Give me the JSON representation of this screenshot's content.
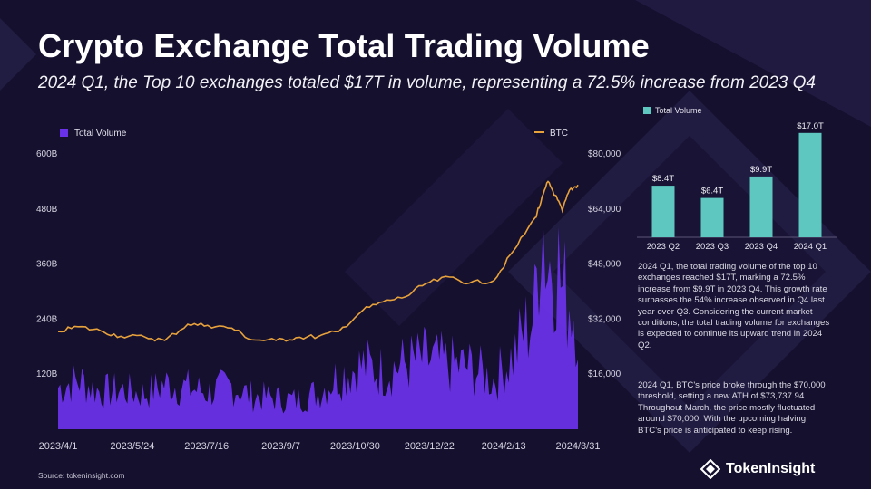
{
  "header": {
    "title": "Crypto Exchange Total Trading Volume",
    "subtitle": "2024 Q1, the Top 10 exchanges totaled $17T in volume, representing a 72.5% increase from 2023 Q4"
  },
  "colors": {
    "background": "#15102e",
    "volume": "#6a32e8",
    "btc": "#e8a23c",
    "quarter_bar": "#5ec8c0"
  },
  "chart_data": [
    {
      "type": "area",
      "title": "",
      "legend": {
        "left": "Total Volume",
        "right": "BTC",
        "placement": "top"
      },
      "x_ticks": [
        "2023/4/1",
        "2023/5/24",
        "2023/7/16",
        "2023/9/7",
        "2023/10/30",
        "2023/12/22",
        "2024/2/13",
        "2024/3/31"
      ],
      "y_left": {
        "ticks": [
          "120B",
          "240B",
          "360B",
          "480B",
          "600B"
        ],
        "ylim": [
          0,
          600
        ]
      },
      "y_right": {
        "ticks": [
          "$16,000",
          "$32,000",
          "$48,000",
          "$64,000",
          "$80,000"
        ],
        "ylim": [
          0,
          80000
        ]
      },
      "series": [
        {
          "name": "Total Volume",
          "axis": "left",
          "unit": "B",
          "x": [
            "2023/4/1",
            "2023/4/15",
            "2023/5/1",
            "2023/5/15",
            "2023/6/1",
            "2023/6/15",
            "2023/7/1",
            "2023/7/15",
            "2023/8/1",
            "2023/8/15",
            "2023/9/1",
            "2023/9/15",
            "2023/10/1",
            "2023/10/15",
            "2023/11/1",
            "2023/11/15",
            "2023/12/1",
            "2023/12/15",
            "2024/1/1",
            "2024/1/15",
            "2024/2/1",
            "2024/2/15",
            "2024/3/1",
            "2024/3/5",
            "2024/3/10",
            "2024/3/15",
            "2024/3/20",
            "2024/3/25",
            "2024/3/31"
          ],
          "values": [
            100,
            120,
            90,
            95,
            85,
            110,
            100,
            90,
            105,
            80,
            75,
            70,
            90,
            130,
            155,
            140,
            160,
            170,
            155,
            150,
            120,
            180,
            290,
            560,
            390,
            450,
            330,
            320,
            270
          ]
        },
        {
          "name": "BTC",
          "axis": "right",
          "unit": "USD",
          "x": [
            "2023/4/1",
            "2023/4/15",
            "2023/5/1",
            "2023/5/15",
            "2023/6/1",
            "2023/6/15",
            "2023/7/1",
            "2023/7/15",
            "2023/8/1",
            "2023/8/15",
            "2023/9/1",
            "2023/9/15",
            "2023/10/1",
            "2023/10/15",
            "2023/11/1",
            "2023/11/15",
            "2023/12/1",
            "2023/12/15",
            "2024/1/1",
            "2024/1/15",
            "2024/2/1",
            "2024/2/15",
            "2024/3/1",
            "2024/3/5",
            "2024/3/10",
            "2024/3/15",
            "2024/3/20",
            "2024/3/25",
            "2024/3/31"
          ],
          "values": [
            28400,
            29800,
            28600,
            27000,
            26800,
            25800,
            30500,
            30200,
            29400,
            26000,
            25800,
            26600,
            27000,
            28400,
            34600,
            37000,
            38500,
            42300,
            44200,
            42500,
            43200,
            52000,
            61500,
            66000,
            72000,
            68000,
            63500,
            69500,
            71000
          ]
        }
      ]
    },
    {
      "type": "bar",
      "title": "",
      "legend": {
        "entries": [
          "Total Volume"
        ],
        "placement": "top-left"
      },
      "categories": [
        "2023 Q2",
        "2023 Q3",
        "2023 Q4",
        "2024 Q1"
      ],
      "values": [
        8.4,
        6.4,
        9.9,
        17.0
      ],
      "labels": [
        "$8.4T",
        "$6.4T",
        "$9.9T",
        "$17.0T"
      ],
      "ylim": [
        0,
        18
      ]
    }
  ],
  "description": {
    "para1": "2024 Q1, the total trading volume of the top 10 exchanges reached $17T, marking a 72.5% increase from $9.9T in 2023 Q4. This growth rate surpasses the 54% increase observed in Q4 last year over Q3. Considering the current market conditions, the total trading volume for exchanges is expected to continue its upward trend in 2024 Q2.",
    "para2": "2024 Q1, BTC's price broke through the $70,000 threshold, setting a new ATH of $73,737.94. Throughout March, the price mostly fluctuated around $70,000. With the upcoming halving, BTC's price is anticipated to keep rising."
  },
  "footer": {
    "source": "Source: tokeninsight.com",
    "brand": "TokenInsight"
  }
}
